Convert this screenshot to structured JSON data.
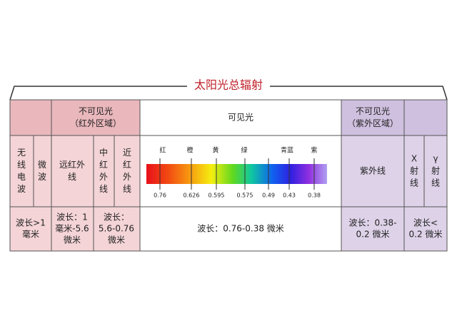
{
  "title": "太阳光总辐射",
  "header": {
    "infrared": [
      "不可见光",
      "（红外区域）"
    ],
    "visible": "可见光",
    "ultraviolet": [
      "不可见光",
      "（紫外区域）"
    ]
  },
  "bands": [
    [
      "无",
      "线",
      "电",
      "波"
    ],
    [
      "微",
      "波"
    ],
    [
      "远红外",
      "线"
    ],
    [
      "中",
      "红",
      "外",
      "线"
    ],
    [
      "近",
      "红",
      "外",
      "线"
    ],
    [
      "紫外线"
    ],
    [
      "X",
      "射",
      "线"
    ],
    [
      "γ",
      "射",
      "线"
    ]
  ],
  "wavelengths": [
    [
      "波长>1",
      "毫米"
    ],
    [
      "波长：1",
      "毫米-5.6",
      "微米"
    ],
    [
      "波长：",
      "5.6-0.76",
      "微米"
    ],
    [
      "波长：0.76-0.38 微米"
    ],
    [
      "波长：0.38-",
      "0.2 微米"
    ],
    [
      "波长<",
      "0.2 微米"
    ]
  ],
  "spectrum": {
    "colors": [
      "红",
      "橙",
      "黄",
      "绿",
      "青蓝",
      "紫"
    ],
    "wavelengths": [
      "0.76",
      "0.626",
      "0.595",
      "0.575",
      "0.49",
      "0.43",
      "0.38"
    ]
  }
}
